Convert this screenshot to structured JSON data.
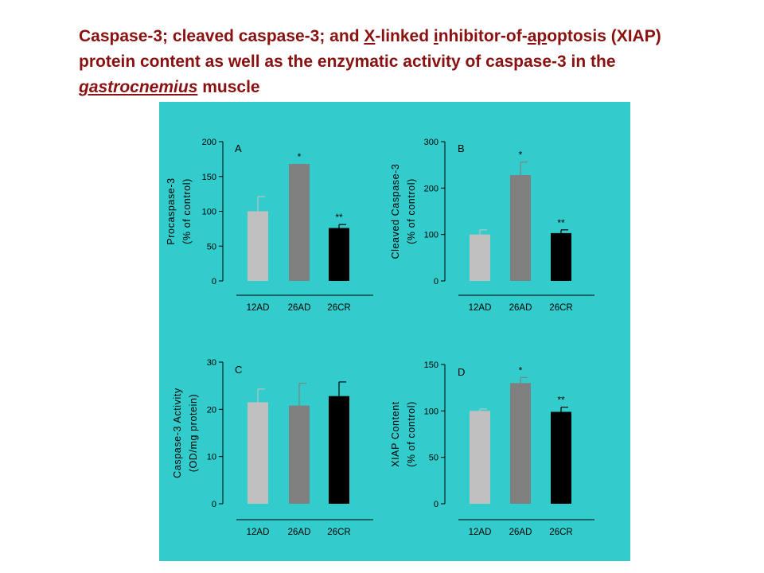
{
  "title": {
    "p1": "Caspase-3; cleaved caspase-3; and ",
    "p2": "X",
    "p3": "-linked ",
    "p4": "i",
    "p5": "nhibitor-of-",
    "p6": "ap",
    "p7": "optosis (XIAP) protein content as well as the enzymatic activity of caspase-3 in the ",
    "p8": "gastrocnemius",
    "p9": " muscle"
  },
  "colors": {
    "panel_bg": "#33cccc",
    "title": "#8b1010",
    "bars": [
      "#c0c0c0",
      "#808080",
      "#000000"
    ]
  },
  "chart_data": [
    {
      "type": "bar",
      "panel": "A",
      "ylabel": "Procaspase-3",
      "ylabel2": "(% of control)",
      "categories": [
        "12AD",
        "26AD",
        "26CR"
      ],
      "values": [
        100,
        168,
        76
      ],
      "errors": [
        21,
        0,
        5
      ],
      "annotations": [
        "",
        "*",
        "**"
      ],
      "yticks": [
        0,
        50,
        100,
        150,
        200
      ],
      "ylim": [
        0,
        200
      ]
    },
    {
      "type": "bar",
      "panel": "B",
      "ylabel": "Cleaved Caspase-3",
      "ylabel2": "(% of control)",
      "categories": [
        "12AD",
        "26AD",
        "26CR"
      ],
      "values": [
        100,
        228,
        103
      ],
      "errors": [
        10,
        28,
        7
      ],
      "annotations": [
        "",
        "*",
        "**"
      ],
      "yticks": [
        0,
        100,
        200,
        300
      ],
      "ylim": [
        0,
        300
      ]
    },
    {
      "type": "bar",
      "panel": "C",
      "ylabel": "Caspase-3 Activity",
      "ylabel2": "(OD/mg protein)",
      "categories": [
        "12AD",
        "26AD",
        "26CR"
      ],
      "values": [
        21.5,
        20.8,
        22.8
      ],
      "errors": [
        2.8,
        4.7,
        3.0
      ],
      "annotations": [
        "",
        "",
        ""
      ],
      "yticks": [
        0,
        10,
        20,
        30
      ],
      "ylim": [
        0,
        30
      ]
    },
    {
      "type": "bar",
      "panel": "D",
      "ylabel": "XIAP Content",
      "ylabel2": "(% of control)",
      "categories": [
        "12AD",
        "26AD",
        "26CR"
      ],
      "values": [
        100,
        130,
        99
      ],
      "errors": [
        2,
        6,
        5
      ],
      "annotations": [
        "",
        "*",
        "**"
      ],
      "yticks": [
        0,
        50,
        100,
        150
      ],
      "ylim": [
        0,
        150
      ]
    }
  ]
}
